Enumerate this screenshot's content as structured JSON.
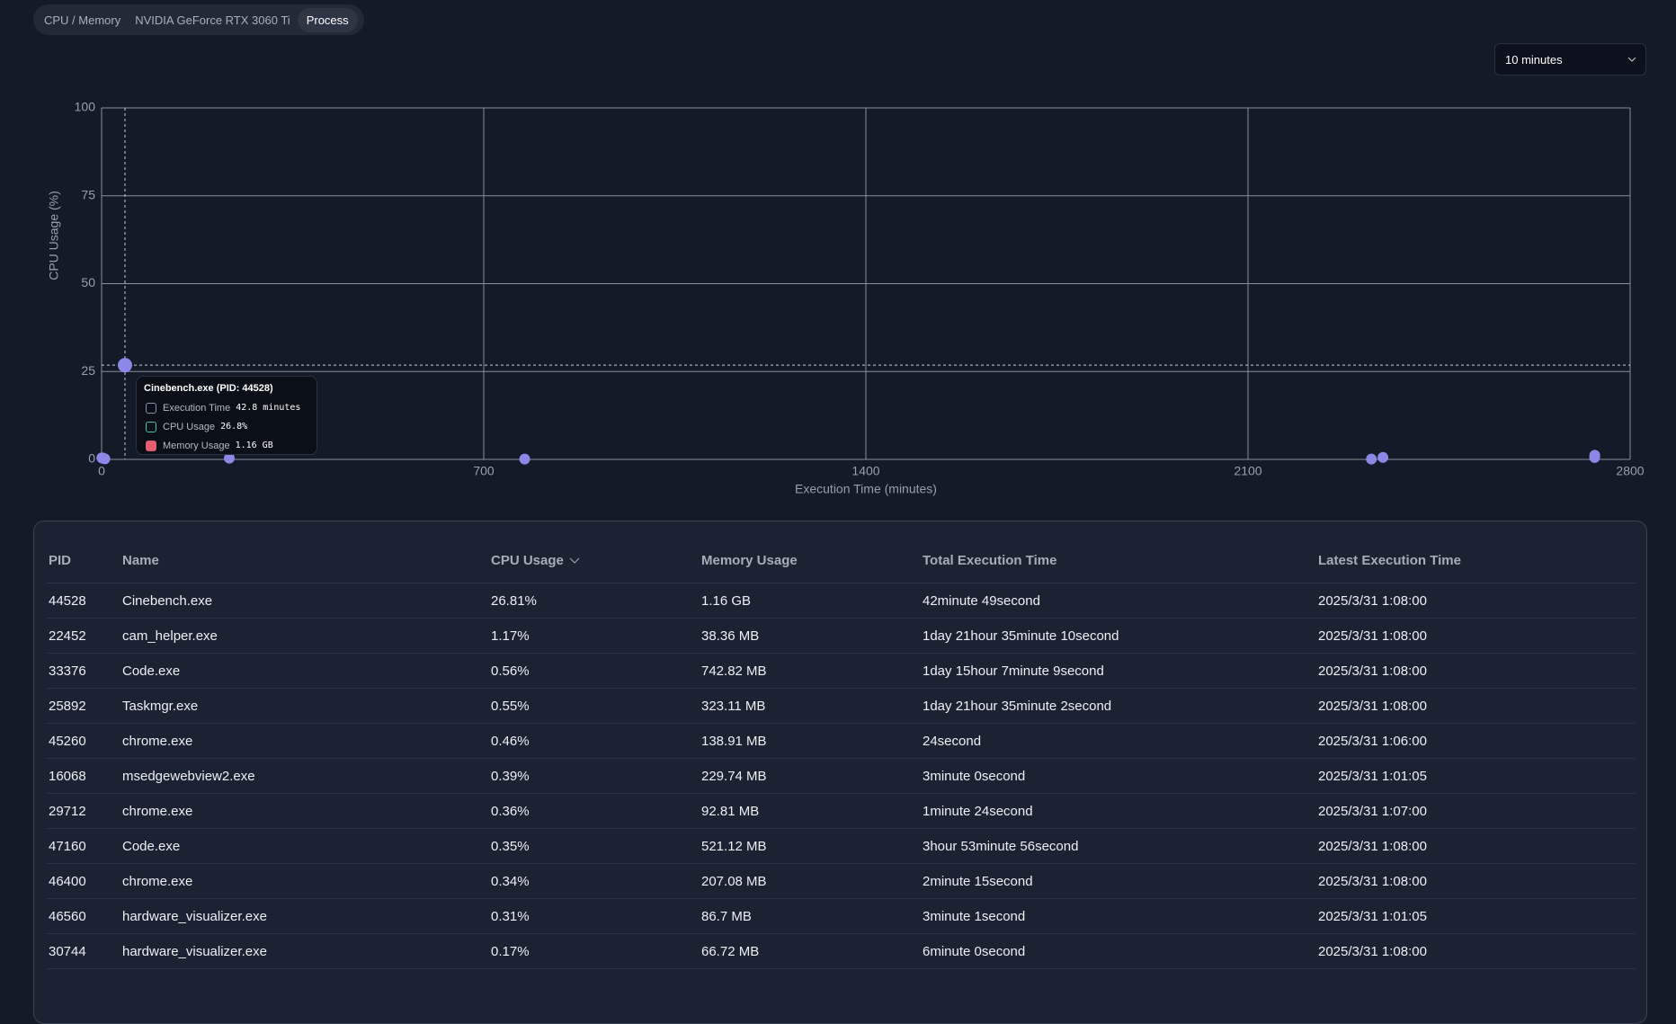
{
  "tabs": [
    "CPU / Memory",
    "NVIDIA GeForce RTX 3060 Ti",
    "Process"
  ],
  "range_select": "10 minutes",
  "chart_data": {
    "type": "scatter",
    "xlabel": "Execution Time (minutes)",
    "ylabel": "CPU Usage (%)",
    "x": [
      42.82,
      2735.17,
      2347.15,
      2735.03,
      0.4,
      3,
      1.4,
      233.93,
      2.25,
      3.02,
      6,
      775,
      2326
    ],
    "values": [
      26.81,
      1.17,
      0.56,
      0.55,
      0.46,
      0.39,
      0.36,
      0.35,
      0.34,
      0.31,
      0.17,
      0.1,
      0.1
    ],
    "color": "#8c88e8",
    "xlim": [
      0,
      2800
    ],
    "xticks": [
      0,
      700,
      1400,
      2100,
      2800
    ],
    "ylim": [
      0,
      100
    ],
    "yticks": [
      0,
      25,
      50,
      75,
      100
    ],
    "grid": true
  },
  "tooltip": {
    "title": "Cinebench.exe (PID: 44528)",
    "rows": [
      {
        "label": "Execution Time",
        "value": "42.8 minutes"
      },
      {
        "label": "CPU Usage",
        "value": "26.8%"
      },
      {
        "label": "Memory Usage",
        "value": "1.16 GB"
      }
    ]
  },
  "table": {
    "columns": [
      "PID",
      "Name",
      "CPU Usage",
      "Memory Usage",
      "Total Execution Time",
      "Latest Execution Time"
    ],
    "rows": [
      [
        "44528",
        "Cinebench.exe",
        "26.81%",
        "1.16 GB",
        "42minute 49second",
        "2025/3/31 1:08:00"
      ],
      [
        "22452",
        "cam_helper.exe",
        "1.17%",
        "38.36 MB",
        "1day 21hour 35minute 10second",
        "2025/3/31 1:08:00"
      ],
      [
        "33376",
        "Code.exe",
        "0.56%",
        "742.82 MB",
        "1day 15hour 7minute 9second",
        "2025/3/31 1:08:00"
      ],
      [
        "25892",
        "Taskmgr.exe",
        "0.55%",
        "323.11 MB",
        "1day 21hour 35minute 2second",
        "2025/3/31 1:08:00"
      ],
      [
        "45260",
        "chrome.exe",
        "0.46%",
        "138.91 MB",
        "24second",
        "2025/3/31 1:06:00"
      ],
      [
        "16068",
        "msedgewebview2.exe",
        "0.39%",
        "229.74 MB",
        "3minute 0second",
        "2025/3/31 1:01:05"
      ],
      [
        "29712",
        "chrome.exe",
        "0.36%",
        "92.81 MB",
        "1minute 24second",
        "2025/3/31 1:07:00"
      ],
      [
        "47160",
        "Code.exe",
        "0.35%",
        "521.12 MB",
        "3hour 53minute 56second",
        "2025/3/31 1:08:00"
      ],
      [
        "46400",
        "chrome.exe",
        "0.34%",
        "207.08 MB",
        "2minute 15second",
        "2025/3/31 1:08:00"
      ],
      [
        "46560",
        "hardware_visualizer.exe",
        "0.31%",
        "86.7 MB",
        "3minute 1second",
        "2025/3/31 1:01:05"
      ],
      [
        "30744",
        "hardware_visualizer.exe",
        "0.17%",
        "66.72 MB",
        "6minute 0second",
        "2025/3/31 1:08:00"
      ]
    ]
  }
}
